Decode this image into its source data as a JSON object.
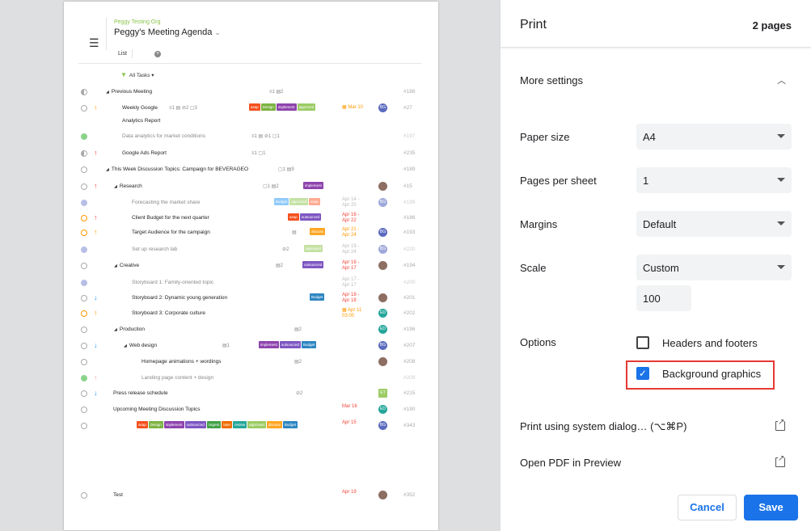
{
  "preview": {
    "org_name": "Peggy Testing Org",
    "title": "Peggy's Meeting Agenda",
    "tab_list": "List",
    "tab_add": "+",
    "filter_label": "All Tasks",
    "tasks": [
      {
        "name": "Previous Meeting",
        "id": "#188",
        "status": "half",
        "meta": "≡1  ▤2"
      },
      {
        "name": "Weekly Google",
        "name2": "Analytics Report",
        "id": "#27",
        "status": "open",
        "prio": "↑",
        "meta": "≡1  ▤ ⊘2  ▢3",
        "tags": [
          "asap",
          "Design",
          "implement",
          "approved"
        ],
        "date": "Mar 10",
        "avatar": "BG"
      },
      {
        "name": "Data analytics for market conditions",
        "id": "#197",
        "status": "done",
        "meta": "≡1  ▤  ⊘1  ▢1"
      },
      {
        "name": "Google Ads Report",
        "id": "#235",
        "status": "half",
        "prio": "↑",
        "meta": "≡1  ▢1"
      },
      {
        "name": "This Week Discussion Topics: Campaign for BEVERAGEO",
        "id": "#189",
        "status": "open",
        "meta": "▢1  ▤9"
      },
      {
        "name": "Research",
        "id": "#15",
        "status": "open",
        "prio": "↑",
        "meta": "▢1  ▤2",
        "tags": [
          "implement"
        ]
      },
      {
        "name": "Forecasting the market share",
        "id": "#199",
        "status": "todo",
        "tags": [
          "Budget",
          "approved",
          "asap"
        ],
        "date": "Apr 14 - Apr 20",
        "avatar": "BG"
      },
      {
        "name": "Client Budget for the next quarter",
        "id": "#186",
        "status": "progress",
        "prio": "↑",
        "tags": [
          "asap",
          "outsourced"
        ],
        "date": "Apr 16 - Apr 22"
      },
      {
        "name": "Target Audience for the campaign",
        "id": "#193",
        "status": "progress",
        "prio": "↑",
        "meta": "▤",
        "tags": [
          "discuss"
        ],
        "date": "Apr 21 - Apr 24",
        "avatar": "BG"
      },
      {
        "name": "Set up research lab",
        "id": "#220",
        "status": "todo",
        "meta": "⊘2",
        "tags": [
          "approved"
        ],
        "date": "Apr 19 - Apr 24",
        "avatar": "BG"
      },
      {
        "name": "Creative",
        "id": "#194",
        "status": "open",
        "meta": "▤2",
        "tags": [
          "outsourced"
        ],
        "date": "Apr 16 - Apr 17"
      },
      {
        "name": "Storyboard 1: Family-oriented topic",
        "id": "#200",
        "status": "todo",
        "date": "Apr 17 - Apr 17"
      },
      {
        "name": "Storyboard 2: Dynamic young generation",
        "id": "#201",
        "status": "open",
        "prio": "↓",
        "tags": [
          "Budget"
        ],
        "date": "Apr 18 - Apr 18"
      },
      {
        "name": "Storyboard 3: Corporate culture",
        "id": "#202",
        "status": "progress",
        "prio": "↑",
        "date": "Apr 11 03:00",
        "avatar": "ED"
      },
      {
        "name": "Production",
        "id": "#196",
        "status": "open",
        "meta": "▤2",
        "avatar": "ED"
      },
      {
        "name": "Web design",
        "id": "#207",
        "status": "open",
        "prio": "↓",
        "meta": "▤1",
        "tags": [
          "implement",
          "outsourced",
          "Budget"
        ],
        "avatar": "BG"
      },
      {
        "name": "Homepage animations + wordings",
        "id": "#208",
        "status": "open",
        "meta": "▤2"
      },
      {
        "name": "Landing page content + design",
        "id": "#209",
        "status": "done",
        "prio": "↑"
      },
      {
        "name": "Press release schedule",
        "id": "#215",
        "status": "open",
        "prio": "↓",
        "meta": "⊘2",
        "avatar": "ET"
      },
      {
        "name": "Upcoming Meeting Discussion Topics",
        "id": "#190",
        "status": "open",
        "date": "Mar 16",
        "avatar": "ED"
      },
      {
        "name": "",
        "id": "#343",
        "status": "open",
        "tags": [
          "asap",
          "Design",
          "implement",
          "outsourced",
          "Urgent",
          "later",
          "review",
          "approved",
          "discuss",
          "Budget"
        ],
        "date": "Apr 15",
        "avatar": "BG"
      },
      {
        "name": "Test",
        "id": "#352",
        "status": "open",
        "date": "Apr 19"
      }
    ]
  },
  "panel": {
    "title": "Print",
    "pages": "2 pages",
    "more_settings": "More settings",
    "paper_size_label": "Paper size",
    "paper_size_value": "A4",
    "pages_per_sheet_label": "Pages per sheet",
    "pages_per_sheet_value": "1",
    "margins_label": "Margins",
    "margins_value": "Default",
    "scale_label": "Scale",
    "scale_value": "Custom",
    "scale_percent": "100",
    "options_label": "Options",
    "headers_footers": "Headers and footers",
    "headers_footers_checked": false,
    "background_graphics": "Background graphics",
    "background_graphics_checked": true,
    "system_dialog": "Print using system dialog… (⌥⌘P)",
    "open_pdf": "Open PDF in Preview",
    "cancel": "Cancel",
    "save": "Save"
  },
  "colors": {
    "accent": "#1a73e8",
    "highlight": "#e53935"
  }
}
